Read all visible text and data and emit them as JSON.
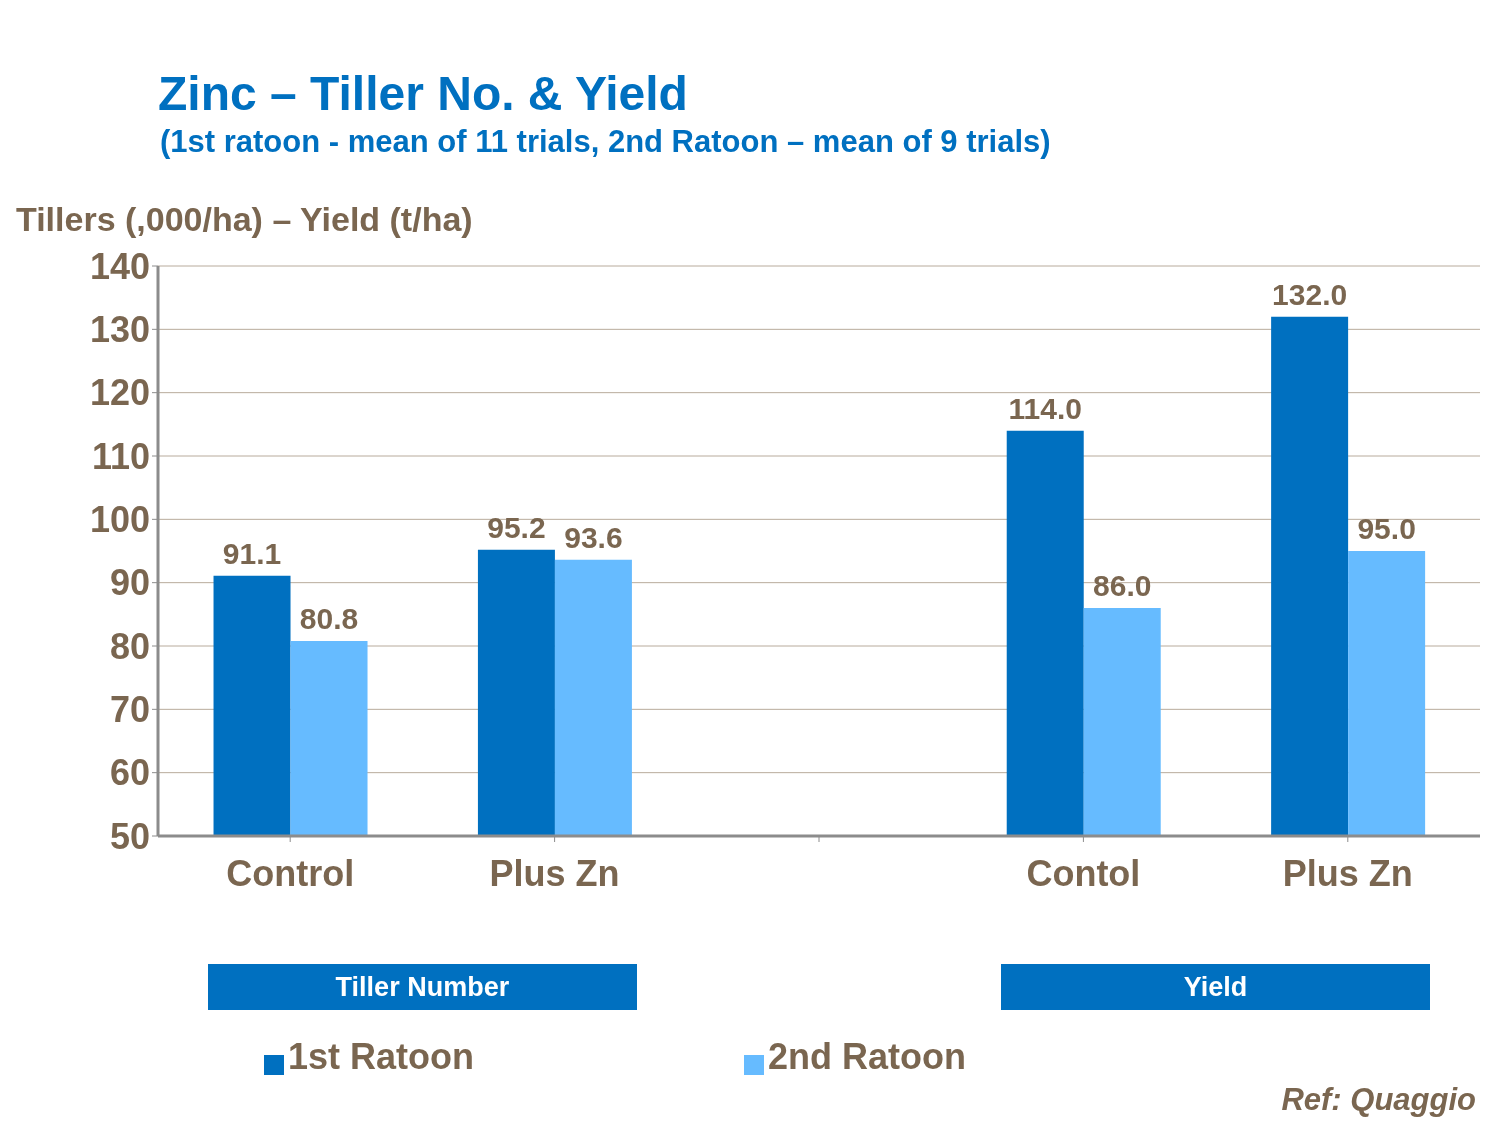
{
  "chart_data": {
    "type": "bar",
    "title": "Zinc – Tiller No. & Yield",
    "subtitle": "(1st ratoon - mean of 11 trials, 2nd Ratoon – mean of 9 trials)",
    "ylabel": "Tillers (,000/ha) – Yield (t/ha)",
    "categories": [
      "Control",
      "Plus Zn",
      null,
      "Contol",
      "Plus Zn"
    ],
    "series": [
      {
        "name": "1st Ratoon",
        "color": "#0070c0",
        "values": [
          91.1,
          95.2,
          null,
          114,
          132
        ],
        "value_labels": [
          "91.1",
          "95.2",
          null,
          "114.0",
          "132.0"
        ]
      },
      {
        "name": "2nd Ratoon",
        "color": "#66bbff",
        "values": [
          80.8,
          93.6,
          null,
          86,
          95
        ],
        "value_labels": [
          "80.8",
          "93.6",
          null,
          "86.0",
          "95.0"
        ]
      }
    ],
    "ylim": [
      50,
      140
    ],
    "yticks": [
      50,
      60,
      70,
      80,
      90,
      100,
      110,
      120,
      130,
      140
    ],
    "grid": "y",
    "legend": "bottom",
    "annotations": [
      "Tiller Number",
      "Yield",
      "Ref: Quaggio"
    ]
  }
}
